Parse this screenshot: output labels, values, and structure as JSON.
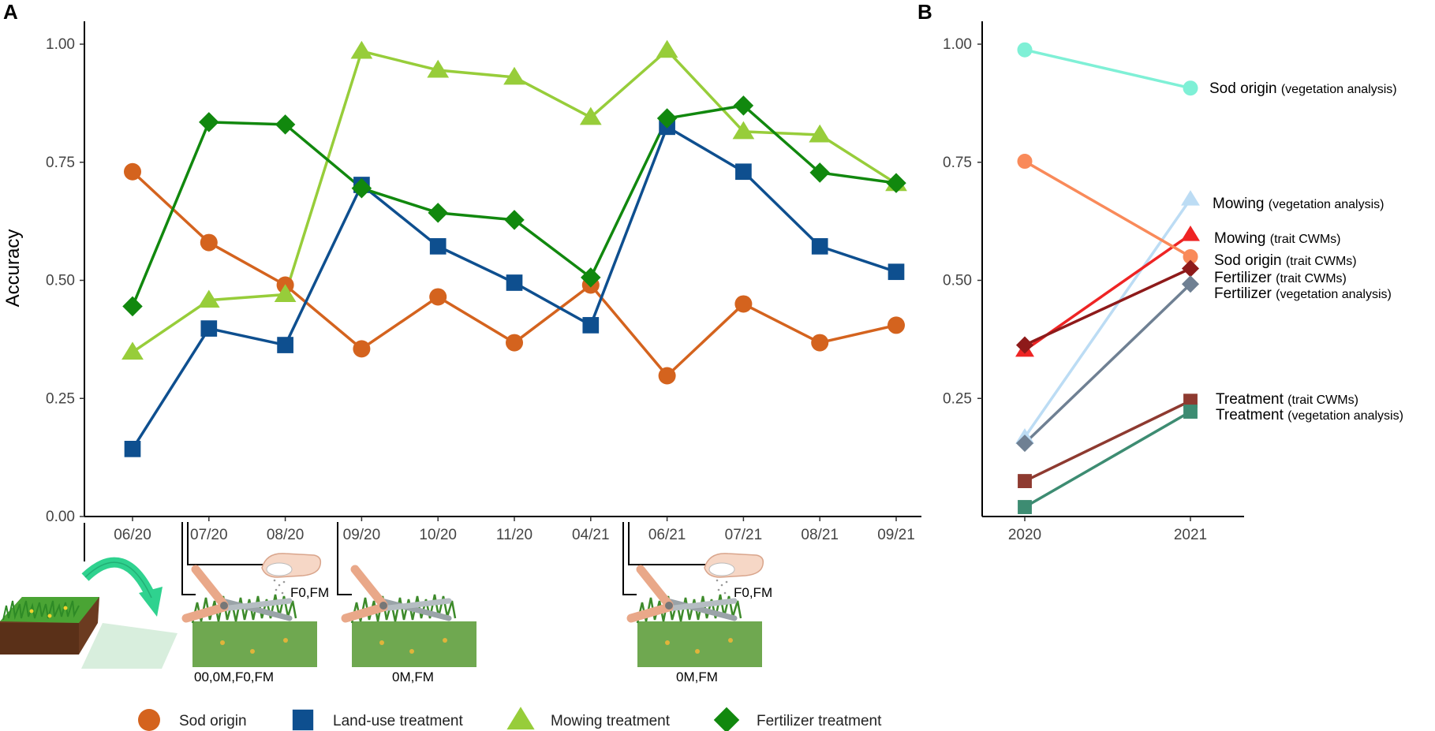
{
  "chart_data": [
    {
      "panel": "A",
      "type": "line",
      "ylabel": "Accuracy",
      "xlabel": "",
      "ylim": [
        0,
        1
      ],
      "yticks": [
        "0.00",
        "0.25",
        "0.50",
        "0.75",
        "1.00"
      ],
      "categories": [
        "06/20",
        "07/20",
        "08/20",
        "09/20",
        "10/20",
        "11/20",
        "04/21",
        "06/21",
        "07/21",
        "08/21",
        "09/21"
      ],
      "series": [
        {
          "name": "Sod origin",
          "color": "#d4631e",
          "marker": "circle",
          "values": [
            0.73,
            0.58,
            0.49,
            0.355,
            0.465,
            0.368,
            0.49,
            0.298,
            0.45,
            0.368,
            0.405
          ]
        },
        {
          "name": "Land-use treatment",
          "color": "#0e4f8f",
          "marker": "square",
          "values": [
            0.143,
            0.398,
            0.363,
            0.702,
            0.572,
            0.495,
            0.405,
            0.825,
            0.73,
            0.572,
            0.518
          ]
        },
        {
          "name": "Mowing treatment",
          "color": "#97cd3a",
          "marker": "triangle",
          "values": [
            0.348,
            0.458,
            0.47,
            0.985,
            0.945,
            0.93,
            0.845,
            0.987,
            0.815,
            0.808,
            0.705
          ]
        },
        {
          "name": "Fertilizer treatment",
          "color": "#11880e",
          "marker": "diamond",
          "values": [
            0.445,
            0.835,
            0.83,
            0.695,
            0.643,
            0.628,
            0.506,
            0.843,
            0.87,
            0.728,
            0.706
          ]
        }
      ],
      "events": [
        {
          "after_category": "06/20",
          "label": "00,0M,F0,FM"
        },
        {
          "after_category": "07/20",
          "label": "F0,FM"
        },
        {
          "after_category": "08/20",
          "label": "0M,FM"
        },
        {
          "after_category": "04/21",
          "label": "0M,FM"
        },
        {
          "after_category": "04/21",
          "label": "F0,FM"
        }
      ],
      "legend": {
        "placement": "bottom",
        "items": [
          "Sod origin",
          "Land-use treatment",
          "Mowing treatment",
          "Fertilizer treatment"
        ]
      }
    },
    {
      "panel": "B",
      "type": "line",
      "ylabel": "",
      "ylim": [
        0,
        1
      ],
      "yticks": [
        "0.25",
        "0.50",
        "0.75",
        "1.00"
      ],
      "categories": [
        "2020",
        "2021"
      ],
      "series": [
        {
          "name": "Sod origin",
          "note": "(vegetation analysis)",
          "color": "#7ff0d6",
          "marker": "circle",
          "values": [
            0.988,
            0.907
          ]
        },
        {
          "name": "Mowing",
          "note": "(vegetation analysis)",
          "color": "#bcdcf4",
          "marker": "triangle",
          "values": [
            0.168,
            0.672
          ]
        },
        {
          "name": "Mowing",
          "note": "(trait CWMs)",
          "color": "#ee2424",
          "marker": "triangle",
          "values": [
            0.352,
            0.597
          ]
        },
        {
          "name": "Sod origin",
          "note": "(trait CWMs)",
          "color": "#f98a5a",
          "marker": "circle",
          "values": [
            0.752,
            0.55
          ]
        },
        {
          "name": "Fertilizer",
          "note": "(trait CWMs)",
          "color": "#8e1a1a",
          "marker": "diamond",
          "values": [
            0.363,
            0.525
          ]
        },
        {
          "name": "Fertilizer",
          "note": "(vegetation analysis)",
          "color": "#6f8093",
          "marker": "diamond",
          "values": [
            0.155,
            0.492
          ]
        },
        {
          "name": "Treatment",
          "note": "(trait CWMs)",
          "color": "#8e3a30",
          "marker": "square",
          "values": [
            0.075,
            0.245
          ]
        },
        {
          "name": "Treatment",
          "note": "(vegetation analysis)",
          "color": "#3d8c72",
          "marker": "square",
          "values": [
            0.02,
            0.222
          ]
        }
      ]
    }
  ]
}
